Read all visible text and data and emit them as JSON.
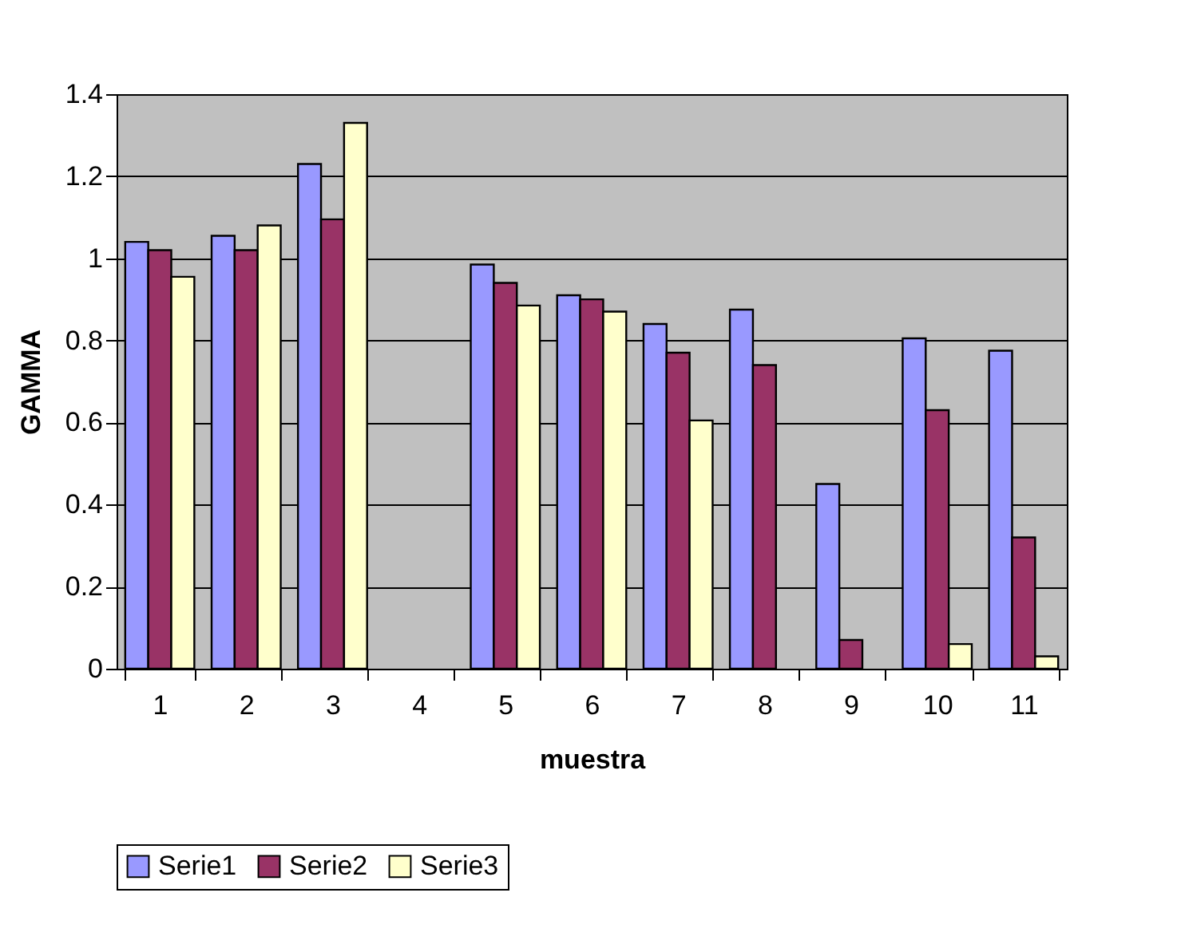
{
  "chart_data": {
    "type": "bar",
    "xlabel": "muestra",
    "ylabel": "GAMMA",
    "categories": [
      "1",
      "2",
      "3",
      "4",
      "5",
      "6",
      "7",
      "8",
      "9",
      "10",
      "11"
    ],
    "series": [
      {
        "name": "Serie1",
        "color": "#9999ff",
        "values": [
          1.04,
          1.055,
          1.23,
          null,
          0.985,
          0.91,
          0.84,
          0.875,
          0.45,
          0.805,
          0.775
        ]
      },
      {
        "name": "Serie2",
        "color": "#993366",
        "values": [
          1.02,
          1.02,
          1.095,
          null,
          0.94,
          0.9,
          0.77,
          0.74,
          0.07,
          0.63,
          0.32
        ]
      },
      {
        "name": "Serie3",
        "color": "#ffffcc",
        "values": [
          0.955,
          1.08,
          1.33,
          null,
          0.885,
          0.87,
          0.605,
          null,
          null,
          0.06,
          0.03
        ]
      }
    ],
    "ylim": [
      0,
      1.4
    ],
    "yticks": [
      0,
      0.2,
      0.4,
      0.6,
      0.8,
      1,
      1.2,
      1.4
    ],
    "grid": "y",
    "legend": "bottom"
  }
}
